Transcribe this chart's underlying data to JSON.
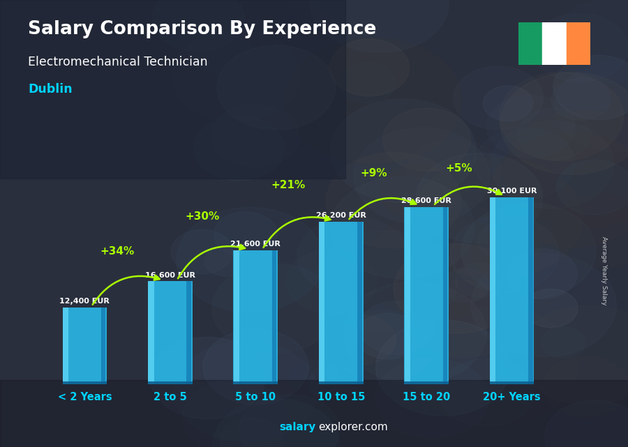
{
  "title": "Salary Comparison By Experience",
  "subtitle": "Electromechanical Technician",
  "city": "Dublin",
  "categories": [
    "< 2 Years",
    "2 to 5",
    "5 to 10",
    "10 to 15",
    "15 to 20",
    "20+ Years"
  ],
  "values": [
    12400,
    16600,
    21600,
    26200,
    28600,
    30100
  ],
  "labels": [
    "12,400 EUR",
    "16,600 EUR",
    "21,600 EUR",
    "26,200 EUR",
    "28,600 EUR",
    "30,100 EUR"
  ],
  "pct_changes": [
    "+34%",
    "+30%",
    "+21%",
    "+9%",
    "+5%"
  ],
  "title_color": "#ffffff",
  "subtitle_color": "#ffffff",
  "city_color": "#00d4ff",
  "label_color": "#ffffff",
  "pct_color": "#aaff00",
  "cat_color": "#00d4ff",
  "ylabel": "Average Yearly Salary",
  "flag_colors": [
    "#169b62",
    "#ffffff",
    "#ff883e"
  ],
  "ylim": [
    0,
    36000
  ],
  "bar_face": "#29b8e8",
  "bar_left": "#60d8f8",
  "bar_right": "#1580b8",
  "bar_bottom": "#0d6090",
  "watermark_salary_color": "#00d4ff",
  "watermark_rest_color": "#ffffff"
}
